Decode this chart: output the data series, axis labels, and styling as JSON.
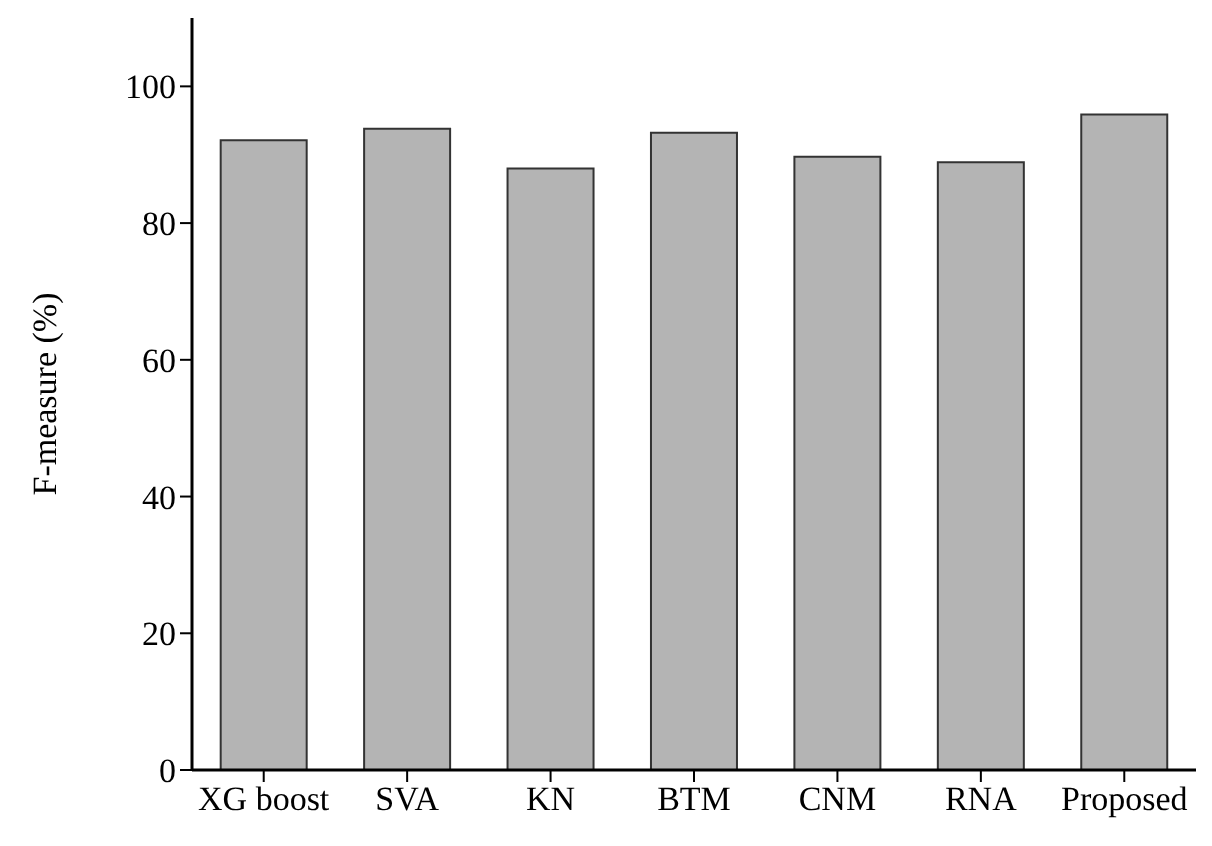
{
  "chart_data": {
    "type": "bar",
    "ylabel": "F-measure (%)",
    "categories": [
      "XG boost",
      "SVA",
      "KN",
      "BTM",
      "CNM",
      "RNA",
      "Proposed"
    ],
    "values": [
      92.1,
      93.8,
      88.0,
      93.2,
      89.7,
      88.9,
      95.9
    ],
    "color": "#b4b4b4",
    "ylim": [
      0,
      110
    ],
    "yticks": [
      0,
      20,
      40,
      60,
      80,
      100
    ],
    "grid": false
  }
}
